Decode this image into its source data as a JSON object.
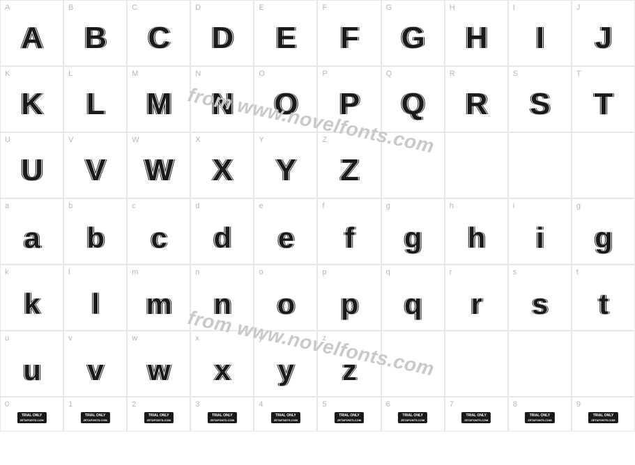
{
  "watermark_text": "from www.novelfonts.com",
  "watermark_color": "#c9c9c9",
  "grid_border_color": "#e8e8e8",
  "label_color": "#b5b5b5",
  "glyph_color": "#1a1a1a",
  "rows": [
    {
      "type": "upper",
      "cells": [
        {
          "label": "A",
          "glyph": "A"
        },
        {
          "label": "B",
          "glyph": "B"
        },
        {
          "label": "C",
          "glyph": "C"
        },
        {
          "label": "D",
          "glyph": "D"
        },
        {
          "label": "E",
          "glyph": "E"
        },
        {
          "label": "F",
          "glyph": "F"
        },
        {
          "label": "G",
          "glyph": "G"
        },
        {
          "label": "H",
          "glyph": "H"
        },
        {
          "label": "I",
          "glyph": "I"
        },
        {
          "label": "J",
          "glyph": "J"
        }
      ]
    },
    {
      "type": "upper",
      "cells": [
        {
          "label": "K",
          "glyph": "K"
        },
        {
          "label": "L",
          "glyph": "L"
        },
        {
          "label": "M",
          "glyph": "M"
        },
        {
          "label": "N",
          "glyph": "N"
        },
        {
          "label": "O",
          "glyph": "O"
        },
        {
          "label": "P",
          "glyph": "P"
        },
        {
          "label": "Q",
          "glyph": "Q"
        },
        {
          "label": "R",
          "glyph": "R"
        },
        {
          "label": "S",
          "glyph": "S"
        },
        {
          "label": "T",
          "glyph": "T"
        }
      ]
    },
    {
      "type": "upper",
      "cells": [
        {
          "label": "U",
          "glyph": "U"
        },
        {
          "label": "V",
          "glyph": "V"
        },
        {
          "label": "W",
          "glyph": "W"
        },
        {
          "label": "X",
          "glyph": "X"
        },
        {
          "label": "Y",
          "glyph": "Y"
        },
        {
          "label": "Z",
          "glyph": "Z"
        },
        {
          "label": "",
          "glyph": ""
        },
        {
          "label": "",
          "glyph": ""
        },
        {
          "label": "",
          "glyph": ""
        },
        {
          "label": "",
          "glyph": ""
        }
      ]
    },
    {
      "type": "lower",
      "cells": [
        {
          "label": "a",
          "glyph": "a"
        },
        {
          "label": "b",
          "glyph": "b"
        },
        {
          "label": "c",
          "glyph": "c"
        },
        {
          "label": "d",
          "glyph": "d"
        },
        {
          "label": "e",
          "glyph": "e"
        },
        {
          "label": "f",
          "glyph": "f"
        },
        {
          "label": "g",
          "glyph": "g"
        },
        {
          "label": "h",
          "glyph": "h"
        },
        {
          "label": "i",
          "glyph": "i"
        },
        {
          "label": "g",
          "glyph": "g"
        }
      ]
    },
    {
      "type": "lower",
      "cells": [
        {
          "label": "k",
          "glyph": "k"
        },
        {
          "label": "l",
          "glyph": "l"
        },
        {
          "label": "m",
          "glyph": "m"
        },
        {
          "label": "n",
          "glyph": "n"
        },
        {
          "label": "o",
          "glyph": "o"
        },
        {
          "label": "p",
          "glyph": "p"
        },
        {
          "label": "q",
          "glyph": "q"
        },
        {
          "label": "r",
          "glyph": "r"
        },
        {
          "label": "s",
          "glyph": "s"
        },
        {
          "label": "t",
          "glyph": "t"
        }
      ]
    },
    {
      "type": "lower",
      "cells": [
        {
          "label": "u",
          "glyph": "u"
        },
        {
          "label": "v",
          "glyph": "v"
        },
        {
          "label": "w",
          "glyph": "w"
        },
        {
          "label": "x",
          "glyph": "x"
        },
        {
          "label": "y",
          "glyph": "y"
        },
        {
          "label": "z",
          "glyph": "z"
        },
        {
          "label": "",
          "glyph": ""
        },
        {
          "label": "",
          "glyph": ""
        },
        {
          "label": "",
          "glyph": ""
        },
        {
          "label": "",
          "glyph": ""
        }
      ]
    },
    {
      "type": "digit",
      "cells": [
        {
          "label": "0",
          "glyph": "trial"
        },
        {
          "label": "1",
          "glyph": "trial"
        },
        {
          "label": "2",
          "glyph": "trial"
        },
        {
          "label": "3",
          "glyph": "trial"
        },
        {
          "label": "4",
          "glyph": "trial"
        },
        {
          "label": "5",
          "glyph": "trial"
        },
        {
          "label": "6",
          "glyph": "trial"
        },
        {
          "label": "7",
          "glyph": "trial"
        },
        {
          "label": "8",
          "glyph": "trial"
        },
        {
          "label": "9",
          "glyph": "trial"
        }
      ]
    }
  ],
  "trial_badge": {
    "line1": "TRIAL ONLY",
    "line2": "ZETAFONTS.COM"
  }
}
